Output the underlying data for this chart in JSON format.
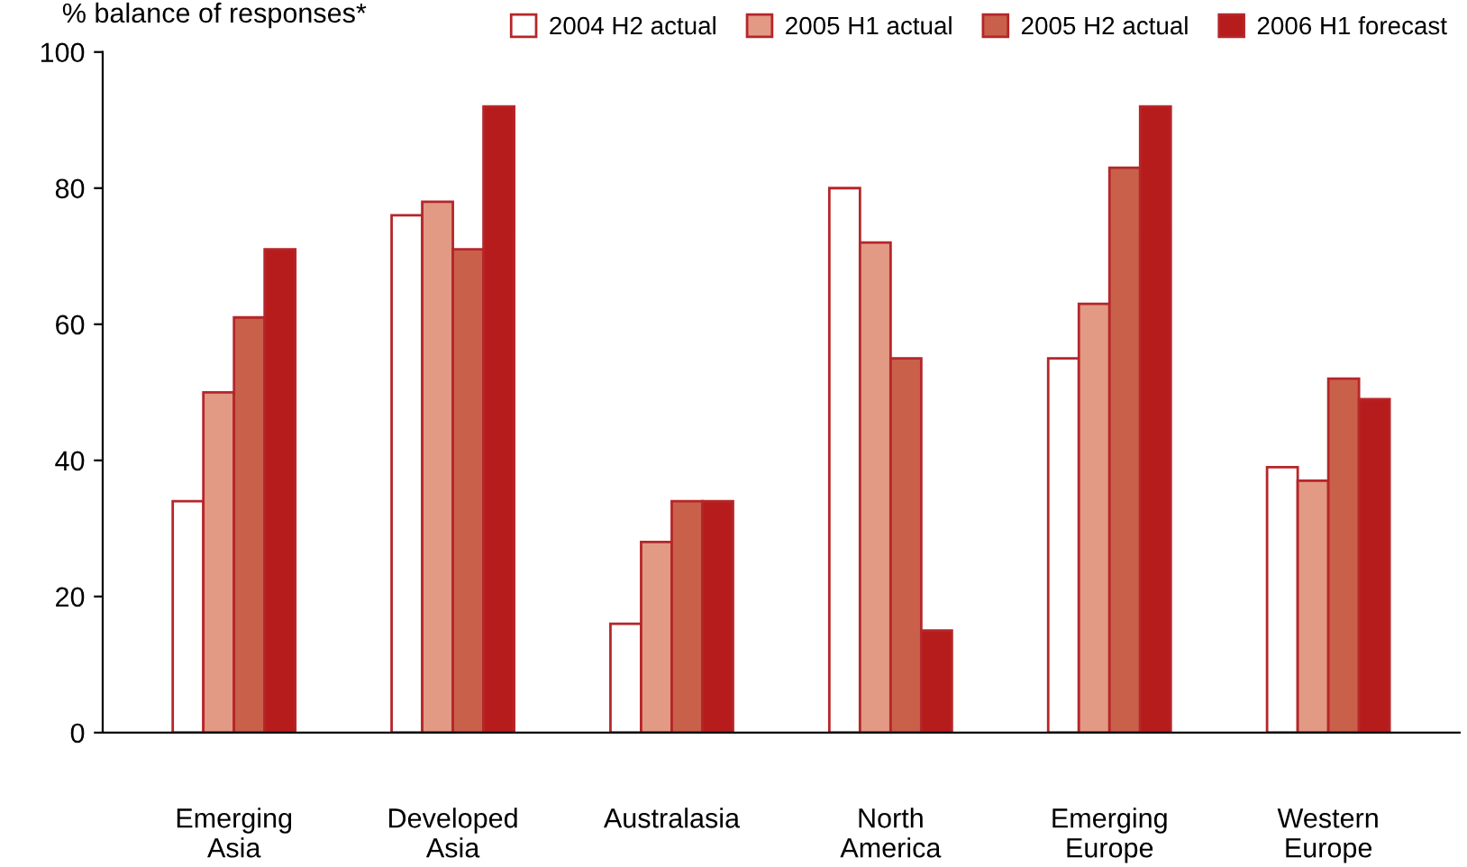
{
  "chart_data": {
    "type": "bar",
    "ylabel": "% balance of responses*",
    "categories": [
      "Emerging\nAsia",
      "Developed\nAsia",
      "Australasia",
      "North\nAmerica",
      "Emerging\nEurope",
      "Western\nEurope"
    ],
    "series": [
      {
        "name": "2004 H2 actual",
        "color": "#ffffff",
        "values": [
          34,
          76,
          16,
          80,
          55,
          39
        ]
      },
      {
        "name": "2005 H1 actual",
        "color": "#e29a84",
        "values": [
          50,
          78,
          28,
          72,
          63,
          37
        ]
      },
      {
        "name": "2005 H2 actual",
        "color": "#c9614a",
        "values": [
          61,
          71,
          34,
          55,
          83,
          52
        ]
      },
      {
        "name": "2006 H1 forecast",
        "color": "#b71c1c",
        "values": [
          71,
          92,
          34,
          15,
          92,
          49
        ]
      }
    ],
    "ylim": [
      0,
      100
    ],
    "yticks": [
      0,
      20,
      40,
      60,
      80,
      100
    ],
    "grid": false,
    "legend": "top"
  }
}
